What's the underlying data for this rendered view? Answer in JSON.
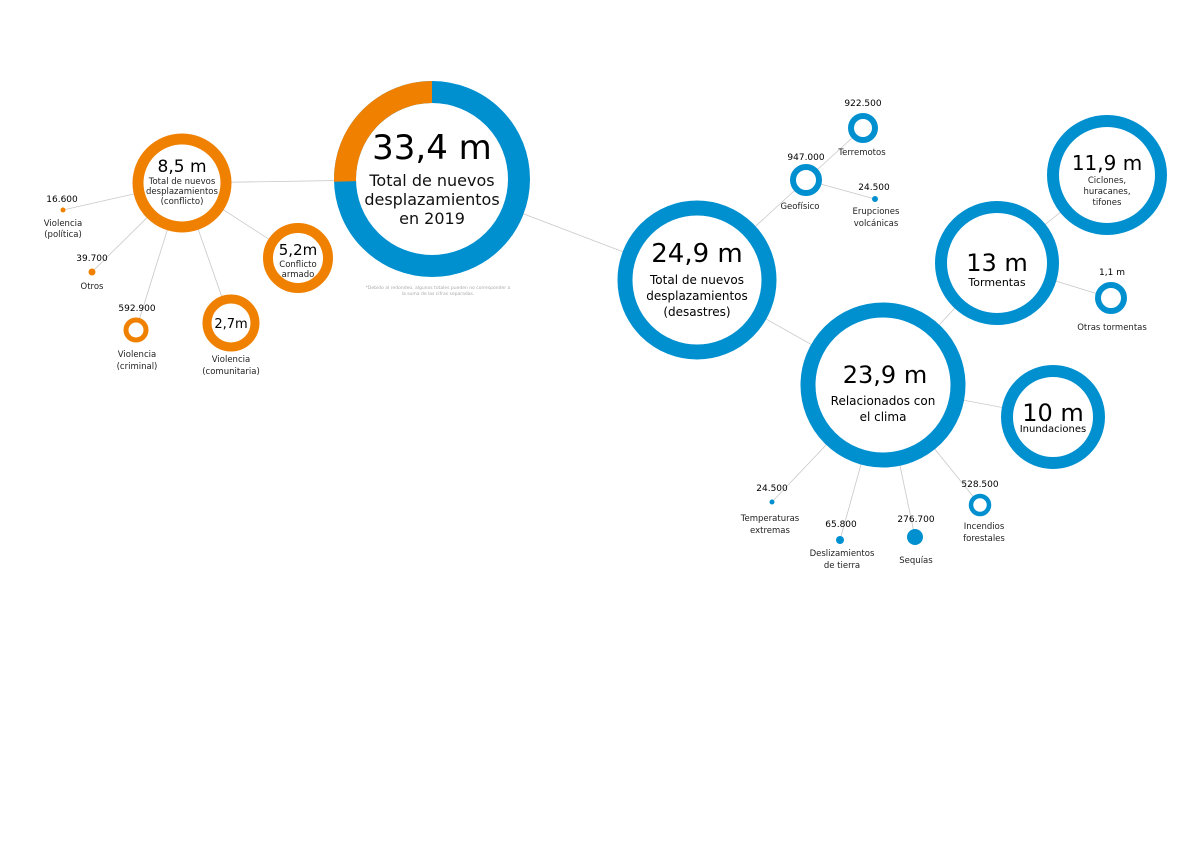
{
  "colors": {
    "conflict": "#F08100",
    "disaster": "#0090D0",
    "connector": "#c8c8c8"
  },
  "total": {
    "value": "33,4 m",
    "label": [
      "Total de nuevos",
      "desplazamientos",
      "en 2019"
    ],
    "conflict_share_m": 8.5,
    "total_m": 33.4
  },
  "footnote": [
    "*Debido al redondeo, algunos totales pueden no corresponder a",
    "la suma de las cifras separadas."
  ],
  "conflict": {
    "value": "8,5 m",
    "label": [
      "Total de nuevos",
      "desplazamientos",
      "(conflicto)"
    ],
    "armed": {
      "value": "5,2m",
      "label": [
        "Conflicto",
        "armado"
      ]
    },
    "communal": {
      "value": "2,7m",
      "label": [
        "Violencia",
        "(comunitaria)"
      ]
    },
    "criminal": {
      "value": "592.900",
      "label": [
        "Violencia",
        "(criminal)"
      ]
    },
    "other": {
      "value": "39.700",
      "label": [
        "Otros"
      ]
    },
    "political": {
      "value": "16.600",
      "label": [
        "Violencia",
        "(política)"
      ]
    }
  },
  "disasters": {
    "value": "24,9 m",
    "label": [
      "Total de nuevos",
      "desplazamientos",
      "(desastres)"
    ],
    "geophysical": {
      "value": "947.000",
      "label": [
        "Geofísico"
      ]
    },
    "earthquakes": {
      "value": "922.500",
      "label": [
        "Terremotos"
      ]
    },
    "volcanic": {
      "value": "24.500",
      "label": [
        "Erupciones",
        "volcánicas"
      ]
    },
    "climate": {
      "value": "23,9 m",
      "label": [
        "Relacionados con",
        "el clima"
      ]
    },
    "storms": {
      "value": "13 m",
      "label": [
        "Tormentas"
      ]
    },
    "cyclones": {
      "value": "11,9 m",
      "label": [
        "Ciclones,",
        "huracanes,",
        "tifones"
      ]
    },
    "other_storms": {
      "value": "1,1 m",
      "label": [
        "Otras tormentas"
      ]
    },
    "floods": {
      "value": "10 m",
      "label": [
        "Inundaciones"
      ]
    },
    "wildfires": {
      "value": "528.500",
      "label": [
        "Incendios",
        "forestales"
      ]
    },
    "drought": {
      "value": "276.700",
      "label": [
        "Sequías"
      ]
    },
    "landslides": {
      "value": "65.800",
      "label": [
        "Deslizamientos",
        "de tierra"
      ]
    },
    "extreme_temps": {
      "value": "24.500",
      "label": [
        "Temperaturas",
        "extremas"
      ]
    }
  }
}
